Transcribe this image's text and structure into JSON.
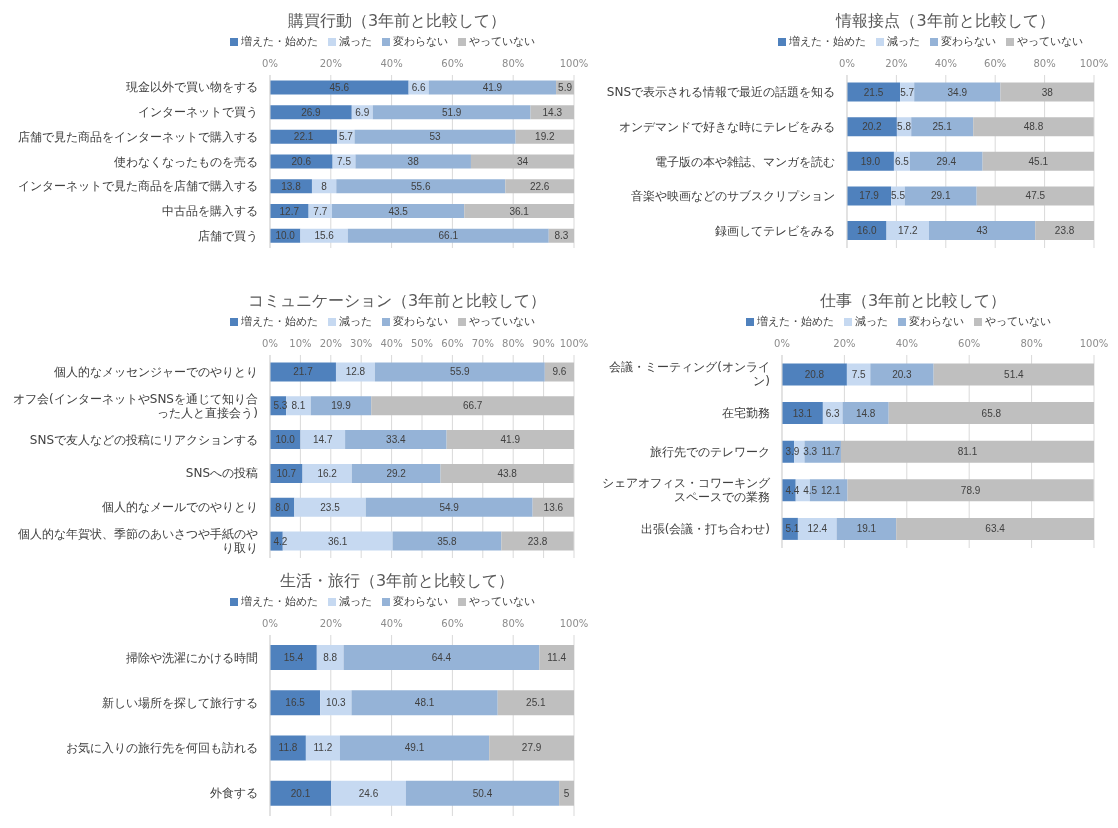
{
  "chart_data": [
    {
      "type": "bar",
      "orientation": "horizontal",
      "stacked": true,
      "title": "購買行動（3年前と比較して）",
      "legend": "top",
      "grid": "x",
      "xlim": [
        0,
        100
      ],
      "xticks": [
        {
          "value": 0,
          "label": "0%"
        },
        {
          "value": 20,
          "label": "20%"
        },
        {
          "value": 40,
          "label": "40%"
        },
        {
          "value": 60,
          "label": "60%"
        },
        {
          "value": 80,
          "label": "80%"
        },
        {
          "value": 100,
          "label": "100%"
        }
      ],
      "categories": [
        "現金以外で買い物をする",
        "インターネットで買う",
        "店舗で見た商品をインターネットで購入する",
        "使わなくなったものを売る",
        "インターネットで見た商品を店舗で購入する",
        "中古品を購入する",
        "店舗で買う"
      ],
      "series": [
        {
          "name": "増えた・始めた",
          "color": "#4f81bd",
          "values": [
            45.6,
            26.9,
            22.1,
            20.6,
            13.8,
            12.7,
            10.0
          ],
          "value_labels": [
            "45.6",
            "26.9",
            "22.1",
            "20.6",
            "13.8",
            "12.7",
            "10.0"
          ]
        },
        {
          "name": "減った",
          "color": "#c6d9f1",
          "values": [
            6.6,
            6.9,
            5.7,
            7.5,
            8,
            7.7,
            15.6
          ],
          "value_labels": [
            "6.6",
            "6.9",
            "5.7",
            "7.5",
            "8",
            "7.7",
            "15.6"
          ]
        },
        {
          "name": "変わらない",
          "color": "#95b3d7",
          "values": [
            41.9,
            51.9,
            53,
            38,
            55.6,
            43.5,
            66.1
          ],
          "value_labels": [
            "41.9",
            "51.9",
            "53",
            "38",
            "55.6",
            "43.5",
            "66.1"
          ]
        },
        {
          "name": "やっていない",
          "color": "#bfbfbf",
          "values": [
            5.9,
            14.3,
            19.2,
            34,
            22.6,
            36.1,
            8.3
          ],
          "value_labels": [
            "5.9",
            "14.3",
            "19.2",
            "34",
            "22.6",
            "36.1",
            "8.3"
          ]
        }
      ]
    },
    {
      "type": "bar",
      "orientation": "horizontal",
      "stacked": true,
      "title": "情報接点（3年前と比較して）",
      "legend": "top",
      "grid": "x",
      "xlim": [
        0,
        100
      ],
      "xticks": [
        {
          "value": 0,
          "label": "0%"
        },
        {
          "value": 20,
          "label": "20%"
        },
        {
          "value": 40,
          "label": "40%"
        },
        {
          "value": 60,
          "label": "60%"
        },
        {
          "value": 80,
          "label": "80%"
        },
        {
          "value": 100,
          "label": "100%"
        }
      ],
      "categories": [
        "SNSで表示される情報で最近の話題を知る",
        "オンデマンドで好きな時にテレビをみる",
        "電子版の本や雑誌、マンガを読む",
        "音楽や映画などのサブスクリプション",
        "録画してテレビをみる"
      ],
      "series": [
        {
          "name": "増えた・始めた",
          "color": "#4f81bd",
          "values": [
            21.5,
            20.2,
            19.0,
            17.9,
            16.0
          ],
          "value_labels": [
            "21.5",
            "20.2",
            "19.0",
            "17.9",
            "16.0"
          ]
        },
        {
          "name": "減った",
          "color": "#c6d9f1",
          "values": [
            5.7,
            5.8,
            6.5,
            5.5,
            17.2
          ],
          "value_labels": [
            "5.7",
            "5.8",
            "6.5",
            "5.5",
            "17.2"
          ]
        },
        {
          "name": "変わらない",
          "color": "#95b3d7",
          "values": [
            34.9,
            25.1,
            29.4,
            29.1,
            43
          ],
          "value_labels": [
            "34.9",
            "25.1",
            "29.4",
            "29.1",
            "43"
          ]
        },
        {
          "name": "やっていない",
          "color": "#bfbfbf",
          "values": [
            38,
            48.8,
            45.1,
            47.5,
            23.8
          ],
          "value_labels": [
            "38",
            "48.8",
            "45.1",
            "47.5",
            "23.8"
          ]
        }
      ]
    },
    {
      "type": "bar",
      "orientation": "horizontal",
      "stacked": true,
      "title": "コミュニケーション（3年前と比較して）",
      "legend": "top",
      "grid": "x",
      "xlim": [
        0,
        100
      ],
      "xticks": [
        {
          "value": 0,
          "label": "0%"
        },
        {
          "value": 10,
          "label": "10%"
        },
        {
          "value": 20,
          "label": "20%"
        },
        {
          "value": 30,
          "label": "30%"
        },
        {
          "value": 40,
          "label": "40%"
        },
        {
          "value": 50,
          "label": "50%"
        },
        {
          "value": 60,
          "label": "60%"
        },
        {
          "value": 70,
          "label": "70%"
        },
        {
          "value": 80,
          "label": "80%"
        },
        {
          "value": 90,
          "label": "90%"
        },
        {
          "value": 100,
          "label": "100%"
        }
      ],
      "categories": [
        "個人的なメッセンジャーでのやりとり",
        "オフ会(インターネットやSNSを通じて知り合った人と直接会う)",
        "SNSで友人などの投稿にリアクションする",
        "SNSへの投稿",
        "個人的なメールでのやりとり",
        "個人的な年賀状、季節のあいさつや手紙のやり取り"
      ],
      "series": [
        {
          "name": "増えた・始めた",
          "color": "#4f81bd",
          "values": [
            21.7,
            5.3,
            10.0,
            10.7,
            8.0,
            4.2
          ],
          "value_labels": [
            "21.7",
            "5.3",
            "10.0",
            "10.7",
            "8.0",
            "4.2"
          ]
        },
        {
          "name": "減った",
          "color": "#c6d9f1",
          "values": [
            12.8,
            8.1,
            14.7,
            16.2,
            23.5,
            36.1
          ],
          "value_labels": [
            "12.8",
            "8.1",
            "14.7",
            "16.2",
            "23.5",
            "36.1"
          ]
        },
        {
          "name": "変わらない",
          "color": "#95b3d7",
          "values": [
            55.9,
            19.9,
            33.4,
            29.2,
            54.9,
            35.8
          ],
          "value_labels": [
            "55.9",
            "19.9",
            "33.4",
            "29.2",
            "54.9",
            "35.8"
          ]
        },
        {
          "name": "やっていない",
          "color": "#bfbfbf",
          "values": [
            9.6,
            66.7,
            41.9,
            43.8,
            13.6,
            23.8
          ],
          "value_labels": [
            "9.6",
            "66.7",
            "41.9",
            "43.8",
            "13.6",
            "23.8"
          ]
        }
      ]
    },
    {
      "type": "bar",
      "orientation": "horizontal",
      "stacked": true,
      "title": "仕事（3年前と比較して）",
      "legend": "top",
      "grid": "x",
      "xlim": [
        0,
        100
      ],
      "xticks": [
        {
          "value": 0,
          "label": "0%"
        },
        {
          "value": 20,
          "label": "20%"
        },
        {
          "value": 40,
          "label": "40%"
        },
        {
          "value": 60,
          "label": "60%"
        },
        {
          "value": 80,
          "label": "80%"
        },
        {
          "value": 100,
          "label": "100%"
        }
      ],
      "categories": [
        "会議・ミーティング(オンライン)",
        "在宅勤務",
        "旅行先でのテレワーク",
        "シェアオフィス・コワーキングスペースでの業務",
        "出張(会議・打ち合わせ)"
      ],
      "series": [
        {
          "name": "増えた・始めた",
          "color": "#4f81bd",
          "values": [
            20.8,
            13.1,
            3.9,
            4.4,
            5.1
          ],
          "value_labels": [
            "20.8",
            "13.1",
            "3.9",
            "4.4",
            "5.1"
          ]
        },
        {
          "name": "減った",
          "color": "#c6d9f1",
          "values": [
            7.5,
            6.3,
            3.3,
            4.5,
            12.4
          ],
          "value_labels": [
            "7.5",
            "6.3",
            "3.3",
            "4.5",
            "12.4"
          ]
        },
        {
          "name": "変わらない",
          "color": "#95b3d7",
          "values": [
            20.3,
            14.8,
            11.7,
            12.1,
            19.1
          ],
          "value_labels": [
            "20.3",
            "14.8",
            "11.7",
            "12.1",
            "19.1"
          ]
        },
        {
          "name": "やっていない",
          "color": "#bfbfbf",
          "values": [
            51.4,
            65.8,
            81.1,
            78.9,
            63.4
          ],
          "value_labels": [
            "51.4",
            "65.8",
            "81.1",
            "78.9",
            "63.4"
          ]
        }
      ]
    },
    {
      "type": "bar",
      "orientation": "horizontal",
      "stacked": true,
      "title": "生活・旅行（3年前と比較して）",
      "legend": "top",
      "grid": "x",
      "xlim": [
        0,
        100
      ],
      "xticks": [
        {
          "value": 0,
          "label": "0%"
        },
        {
          "value": 20,
          "label": "20%"
        },
        {
          "value": 40,
          "label": "40%"
        },
        {
          "value": 60,
          "label": "60%"
        },
        {
          "value": 80,
          "label": "80%"
        },
        {
          "value": 100,
          "label": "100%"
        }
      ],
      "categories": [
        "掃除や洗濯にかける時間",
        "新しい場所を探して旅行する",
        "お気に入りの旅行先を何回も訪れる",
        "外食する"
      ],
      "series": [
        {
          "name": "増えた・始めた",
          "color": "#4f81bd",
          "values": [
            15.4,
            16.5,
            11.8,
            20.1
          ],
          "value_labels": [
            "15.4",
            "16.5",
            "11.8",
            "20.1"
          ]
        },
        {
          "name": "減った",
          "color": "#c6d9f1",
          "values": [
            8.8,
            10.3,
            11.2,
            24.6
          ],
          "value_labels": [
            "8.8",
            "10.3",
            "11.2",
            "24.6"
          ]
        },
        {
          "name": "変わらない",
          "color": "#95b3d7",
          "values": [
            64.4,
            48.1,
            49.1,
            50.4
          ],
          "value_labels": [
            "64.4",
            "48.1",
            "49.1",
            "50.4"
          ]
        },
        {
          "name": "やっていない",
          "color": "#bfbfbf",
          "values": [
            11.4,
            25.1,
            27.9,
            5
          ],
          "value_labels": [
            "11.4",
            "25.1",
            "27.9",
            "5"
          ]
        }
      ]
    }
  ]
}
